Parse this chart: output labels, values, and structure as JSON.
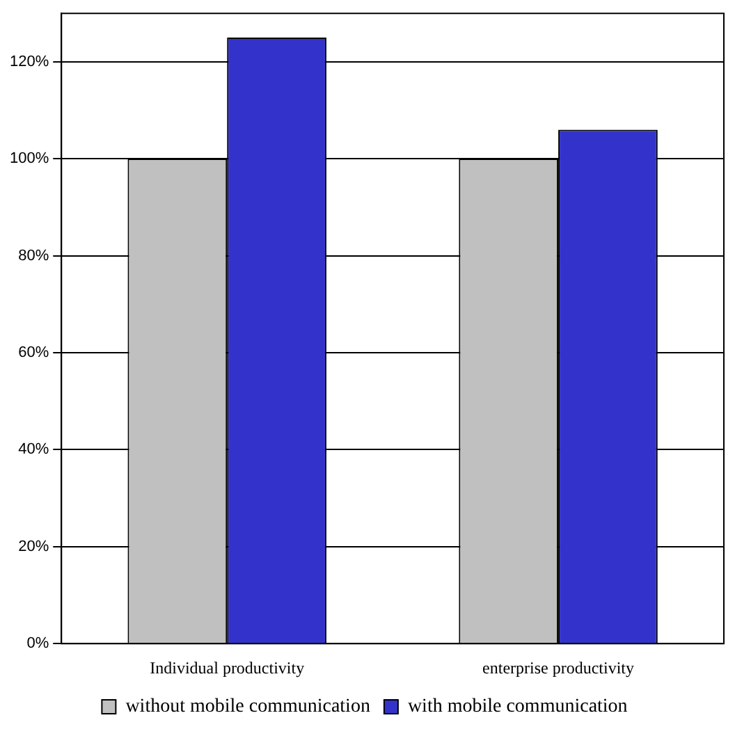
{
  "chart_data": {
    "type": "bar",
    "categories": [
      "Individual productivity",
      "enterprise productivity"
    ],
    "series": [
      {
        "name": "without mobile communication",
        "color": "#c0c0c0",
        "values": [
          100,
          100
        ]
      },
      {
        "name": "with mobile communication",
        "color": "#3333cc",
        "values": [
          125,
          106
        ]
      }
    ],
    "ylim": [
      0,
      130
    ],
    "yticks": [
      {
        "value": 0,
        "label": "0%"
      },
      {
        "value": 20,
        "label": "20%"
      },
      {
        "value": 40,
        "label": "40%"
      },
      {
        "value": 60,
        "label": "60%"
      },
      {
        "value": 80,
        "label": "80%"
      },
      {
        "value": 100,
        "label": "100%"
      },
      {
        "value": 120,
        "label": "120%"
      }
    ],
    "grid": "y",
    "legend": "bottom"
  }
}
